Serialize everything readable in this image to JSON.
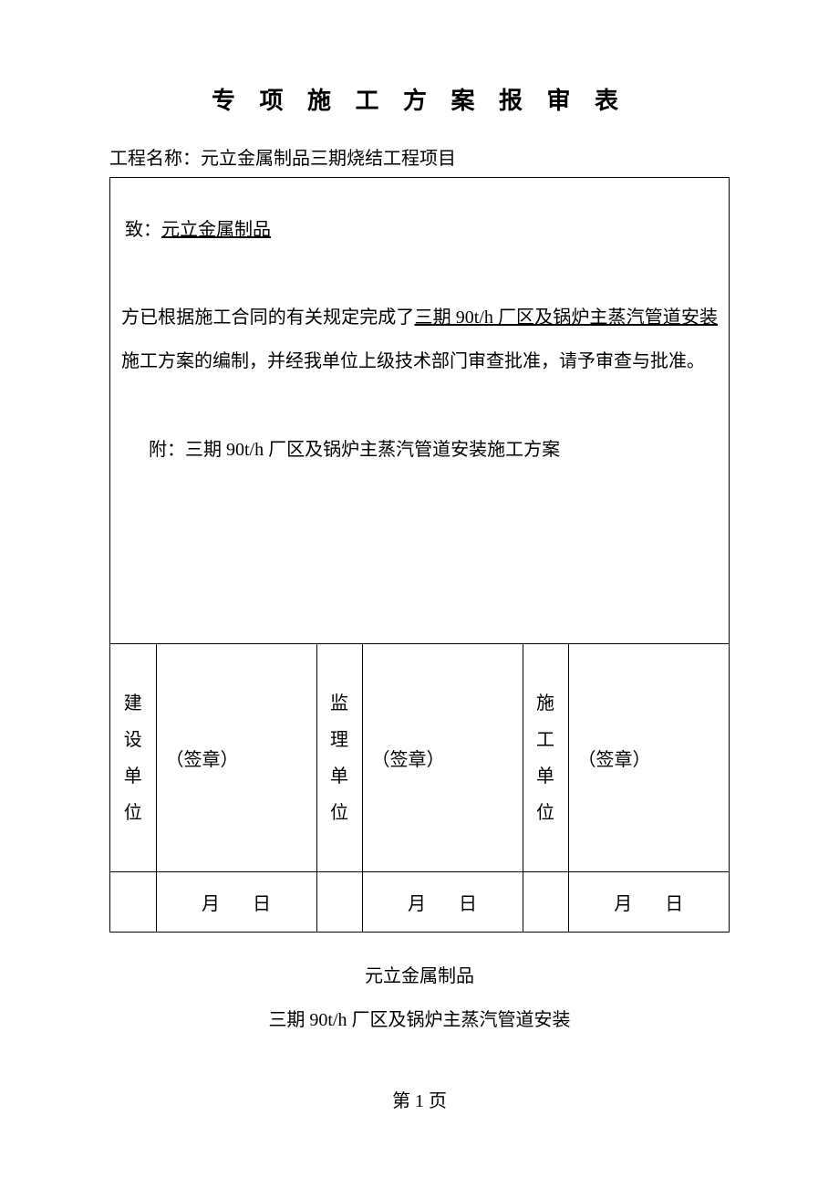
{
  "title": "专 项 施 工 方 案 报 审 表",
  "project_label": "工程名称：",
  "project_name": "元立金属制品三期烧结工程项目",
  "to_label": "致：",
  "to_recipient": "元立金属制品",
  "body_prefix": "方已根据施工合同的有关规定完成了",
  "body_underline": "三期 90t/h 厂区及锅炉主蒸汽管道安装",
  "body_suffix": "施工方案的编制，并经我单位上级技术部门审查批准，请予审查与批准。",
  "attachment_label": "附：",
  "attachment_text": "三期 90t/h 厂区及锅炉主蒸汽管道安装施工方案",
  "sig_labels": {
    "build": "建设单位",
    "supervise": "监理单位",
    "construct": "施工单位"
  },
  "stamp_text": "（签章）",
  "date_month": "月",
  "date_day": "日",
  "footer_line1": "元立金属制品",
  "footer_line2": "三期 90t/h 厂区及锅炉主蒸汽管道安装",
  "page_label": "第 1 页",
  "colors": {
    "text": "#000000",
    "background": "#ffffff",
    "border": "#000000"
  },
  "fonts": {
    "family": "SimSun",
    "title_size": 26,
    "body_size": 20
  }
}
